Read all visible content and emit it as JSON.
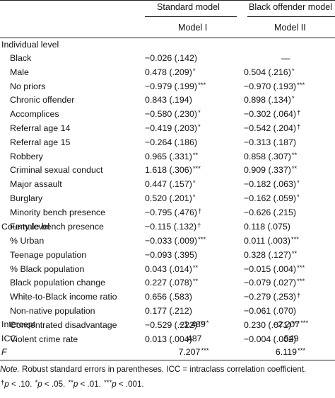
{
  "headers": {
    "standard": "Standard model",
    "black_offender": "Black offender model",
    "model1": "Model I",
    "model2": "Model II"
  },
  "sections": {
    "individual": "Individual level",
    "county": "County level"
  },
  "individual_rows": [
    {
      "label": "Black",
      "m1": "−0.026 (.142)",
      "s1": "",
      "m2": "—",
      "s2": ""
    },
    {
      "label": "Male",
      "m1": "0.478 (.209)",
      "s1": "*",
      "m2": "0.504 (.216)",
      "s2": "*"
    },
    {
      "label": "No priors",
      "m1": "−0.979 (.199)",
      "s1": "***",
      "m2": "−0.970 (.193)",
      "s2": "***"
    },
    {
      "label": "Chronic offender",
      "m1": "0.843 (.194)",
      "s1": "",
      "m2": "0.898 (.134)",
      "s2": "*"
    },
    {
      "label": "Accomplices",
      "m1": "−0.580 (.230)",
      "s1": "*",
      "m2": "−0.302 (.064)",
      "s2": "†"
    },
    {
      "label": "Referral age 14",
      "m1": "−0.419 (.203)",
      "s1": "*",
      "m2": "−0.542 (.204)",
      "s2": "†"
    },
    {
      "label": "Referral age 15",
      "m1": "−0.264 (.186)",
      "s1": "",
      "m2": "−0.313 (.187)",
      "s2": ""
    },
    {
      "label": "Robbery",
      "m1": "0.965 (.331)",
      "s1": "**",
      "m2": "0.858 (.307)",
      "s2": "**"
    },
    {
      "label": "Criminal sexual conduct",
      "m1": "1.618 (.306)",
      "s1": "***",
      "m2": "0.909 (.337)",
      "s2": "**"
    },
    {
      "label": "Major assault",
      "m1": "0.447 (.157)",
      "s1": "*",
      "m2": "−0.182 (.063)",
      "s2": "*"
    },
    {
      "label": "Burglary",
      "m1": "0.520 (.201)",
      "s1": "*",
      "m2": "−0.162 (.059)",
      "s2": "*"
    },
    {
      "label": "Minority bench presence",
      "m1": "−0.795 (.476)",
      "s1": "†",
      "m2": "−0.626 (.215)",
      "s2": ""
    },
    {
      "label": "Female bench presence",
      "m1": "−0.115 (.132)",
      "s1": "†",
      "m2": "0.118 (.075)",
      "s2": ""
    }
  ],
  "county_rows": [
    {
      "label": "% Urban",
      "m1": "−0.033 (.009)",
      "s1": "***",
      "m2": "0.011 (.003)",
      "s2": "***"
    },
    {
      "label": "Teenage population",
      "m1": "−0.093 (.395)",
      "s1": "",
      "m2": "0.328 (.127)",
      "s2": "**"
    },
    {
      "label": "% Black population",
      "m1": "0.043 (.014)",
      "s1": "**",
      "m2": "−0.015 (.004)",
      "s2": "***"
    },
    {
      "label": "Black population change",
      "m1": "0.227 (.078)",
      "s1": "**",
      "m2": "−0.079 (.027)",
      "s2": "***"
    },
    {
      "label": "White-to-Black income ratio",
      "m1": "0.656 (.583)",
      "s1": "",
      "m2": "−0.279 (.253)",
      "s2": "†"
    },
    {
      "label": "Non-native population",
      "m1": "0.177 (.212)",
      "s1": "",
      "m2": "−0.061 (.070)",
      "s2": ""
    },
    {
      "label": "Concentrated disadvantage",
      "m1": "−0.529 (.222)",
      "s1": "***",
      "m2": "0.230 (.071)",
      "s2": "***"
    },
    {
      "label": "Violent crime rate",
      "m1": "0.013 (.004)",
      "s1": "",
      "m2": "−0.004 (.002)",
      "s2": ""
    }
  ],
  "summary_rows": [
    {
      "label": "Intercept",
      "m1": "−1.489",
      "s1": "*",
      "m2": "−2.207",
      "s2": "***"
    },
    {
      "label": "ICC",
      "m1": ".487",
      "s1": "",
      "m2": ".549",
      "s2": ""
    },
    {
      "label": "F",
      "m1": "7.207",
      "s1": "***",
      "m2": "6.119",
      "s2": "***"
    }
  ],
  "note": {
    "prefix": "Note.",
    "text": " Robust standard errors in parentheses. ICC = intraclass correlation coefficient.",
    "dagger": "†",
    "p1": "p",
    "t1": " < .10. ",
    "star1": "*",
    "p2": "p",
    "t2": " < .05. ",
    "star2": "**",
    "p3": "p",
    "t3": " < .01. ",
    "star3": "***",
    "p4": "p",
    "t4": " < .001."
  }
}
